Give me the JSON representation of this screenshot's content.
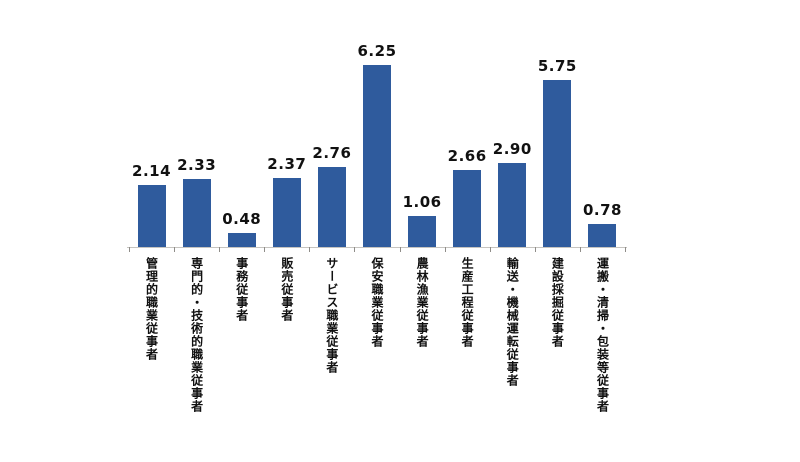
{
  "chart_data": {
    "type": "bar",
    "categories": [
      "管理的職業従事者",
      "専門的・技術的職業従事者",
      "事務従事者",
      "販売従事者",
      "サービス職業従事者",
      "保安職業従事者",
      "農林漁業従事者",
      "生産工程従事者",
      "輸送・機械運転従事者",
      "建設採掘従事者",
      "運搬・清掃・包装等従事者"
    ],
    "values": [
      2.14,
      2.33,
      0.48,
      2.37,
      2.76,
      6.25,
      1.06,
      2.66,
      2.9,
      5.75,
      0.78
    ],
    "value_labels": [
      "2.14",
      "2.33",
      "0.48",
      "2.37",
      "2.76",
      "6.25",
      "1.06",
      "2.66",
      "2.90",
      "5.75",
      "0.78"
    ],
    "title": "",
    "xlabel": "",
    "ylabel": "",
    "ylim": [
      0,
      7.5
    ],
    "grid": false,
    "legend": null,
    "data_labels": true,
    "bar_color": "#2f5b9d",
    "axis_line_color": "#c6c4c0",
    "tick_color": "#8f8d89",
    "label_color": "#111111"
  }
}
